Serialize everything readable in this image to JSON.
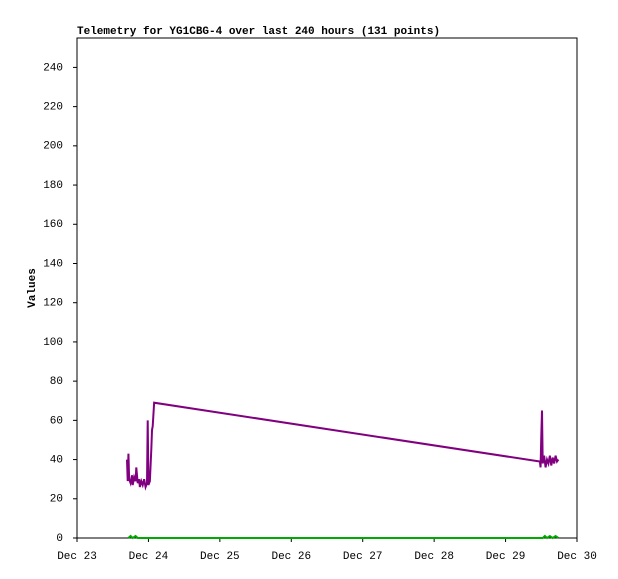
{
  "chart_data": {
    "type": "line",
    "title": "Telemetry for YG1CBG-4 over last 240 hours (131 points)",
    "y_label": "Values",
    "xlim": [
      0,
      7
    ],
    "xticks": [
      {
        "value": 0,
        "label": "Dec 23"
      },
      {
        "value": 1,
        "label": "Dec 24"
      },
      {
        "value": 2,
        "label": "Dec 25"
      },
      {
        "value": 3,
        "label": "Dec 26"
      },
      {
        "value": 4,
        "label": "Dec 27"
      },
      {
        "value": 5,
        "label": "Dec 28"
      },
      {
        "value": 6,
        "label": "Dec 29"
      },
      {
        "value": 7,
        "label": "Dec 30"
      }
    ],
    "ylim": [
      0,
      255
    ],
    "yticks": [
      0,
      20,
      40,
      60,
      80,
      100,
      120,
      140,
      160,
      180,
      200,
      220,
      240
    ],
    "grid": false,
    "series": [
      {
        "color": "#800080",
        "x": [
          0.7,
          0.71,
          0.72,
          0.73,
          0.75,
          0.77,
          0.78,
          0.8,
          0.82,
          0.83,
          0.85,
          0.87,
          0.88,
          0.9,
          0.92,
          0.94,
          0.96,
          0.98,
          0.99,
          1.0,
          1.02,
          1.04,
          1.05,
          1.06,
          1.08,
          6.48,
          6.49,
          6.5,
          6.51,
          6.52,
          6.54,
          6.56,
          6.58,
          6.6,
          6.62,
          6.64,
          6.66,
          6.68,
          6.7,
          6.72,
          6.74
        ],
        "values": [
          40,
          29,
          43,
          30,
          28,
          32,
          27,
          31,
          29,
          36,
          28,
          30,
          26,
          29,
          27,
          30,
          26,
          28,
          60,
          27,
          29,
          45,
          55,
          57,
          69,
          39,
          36,
          52,
          65,
          38,
          42,
          36,
          40,
          38,
          42,
          37,
          41,
          38,
          42,
          39,
          40
        ]
      },
      {
        "color": "#00aa00",
        "x": [
          0.72,
          0.75,
          0.78,
          0.82,
          0.85,
          6.52,
          6.55,
          6.58,
          6.62,
          6.66,
          6.7,
          6.74
        ],
        "values": [
          0,
          1,
          0,
          1,
          0,
          0,
          1,
          0,
          1,
          0,
          1,
          0
        ]
      }
    ]
  }
}
